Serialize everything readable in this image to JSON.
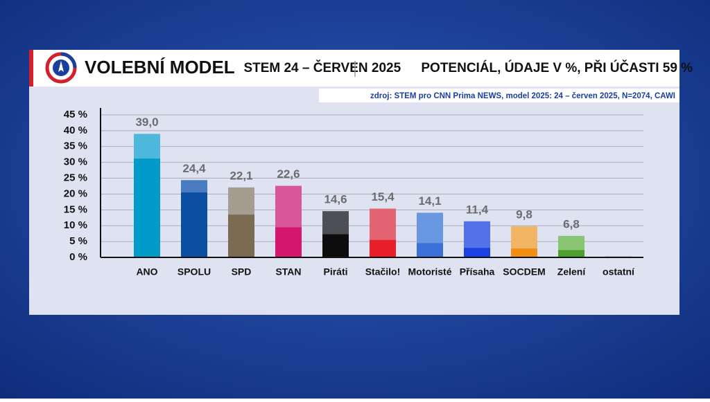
{
  "chart_data": {
    "type": "bar",
    "title": "VOLEBNÍ MODEL",
    "subtitle": "STEM 24 – ČERVEN 2025",
    "subtitle2": "POTENCIÁL, ÚDAJE V %, PŘI ÚČASTI 59 %",
    "source": "zdroj: STEM pro CNN Prima NEWS, model 2025: 24 – červen 2025, N=2074, CAWI",
    "categories": [
      "ANO",
      "SPOLU",
      "SPD",
      "STAN",
      "Piráti",
      "Stačilo!",
      "Motoristé",
      "Přísaha",
      "SOCDEM",
      "Zelení",
      "ostatní"
    ],
    "series": [
      {
        "values": [
          39.0,
          24.4,
          22.1,
          22.6,
          14.6,
          15.4,
          14.1,
          11.4,
          9.8,
          6.8,
          0.3
        ],
        "value_labels": [
          "39,0",
          "24,4",
          "22,1",
          "22,6",
          "14,6",
          "15,4",
          "14,1",
          "11,4",
          "9,8",
          "6,8",
          null
        ],
        "colors": [
          "#4db8dc",
          "#4a7cc2",
          "#a59d90",
          "#d8579c",
          "#4d4f55",
          "#e56474",
          "#6a97e2",
          "#5372ea",
          "#f2b465",
          "#8ac574",
          "#9a9a9a"
        ]
      },
      {
        "values": [
          31.2,
          20.5,
          13.5,
          9.5,
          7.3,
          5.5,
          4.5,
          3.0,
          2.8,
          2.3,
          0.1
        ],
        "colors": [
          "#009bc8",
          "#0a4fa2",
          "#7a6b52",
          "#d4166f",
          "#0d0d0d",
          "#e81f2b",
          "#3a70d8",
          "#1b41e4",
          "#f28f12",
          "#4f9f2f",
          "#777777"
        ]
      }
    ],
    "ylim": [
      0,
      45
    ],
    "yticks": [
      {
        "value": 0,
        "label": "0 %"
      },
      {
        "value": 5,
        "label": "5 %"
      },
      {
        "value": 10,
        "label": "10 %"
      },
      {
        "value": 15,
        "label": "15 %"
      },
      {
        "value": 20,
        "label": "20 %"
      },
      {
        "value": 25,
        "label": "25 %"
      },
      {
        "value": 30,
        "label": "30 %"
      },
      {
        "value": 35,
        "label": "35 %"
      },
      {
        "value": 40,
        "label": "40 %"
      },
      {
        "value": 45,
        "label": "45 %"
      }
    ],
    "grid": true
  }
}
